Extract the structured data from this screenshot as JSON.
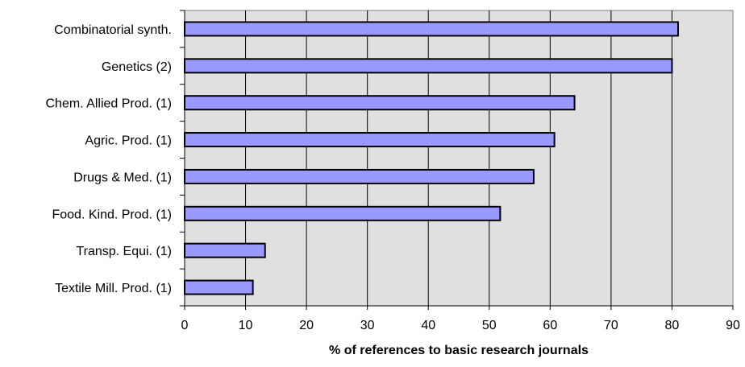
{
  "chart_data": {
    "type": "bar",
    "orientation": "horizontal",
    "categories": [
      "Combinatorial synth.",
      "Genetics (2)",
      "Chem. Allied Prod. (1)",
      "Agric. Prod. (1)",
      "Drugs & Med. (1)",
      "Food. Kind. Prod. (1)",
      "Transp. Equi. (1)",
      "Textile Mill. Prod. (1)"
    ],
    "values": [
      81,
      80,
      64,
      60.7,
      57.3,
      51.8,
      13.2,
      11.2
    ],
    "xlabel": "% of references to basic research journals",
    "xlim": [
      0,
      90
    ],
    "xticks": [
      "0",
      "10",
      "20",
      "30",
      "40",
      "50",
      "60",
      "70",
      "80",
      "90"
    ],
    "grid": true,
    "colors": {
      "bar_fill": "#9999ff",
      "bar_stroke": "#000000",
      "plot_background": "#e0e0e0",
      "grid": "#000000"
    }
  }
}
